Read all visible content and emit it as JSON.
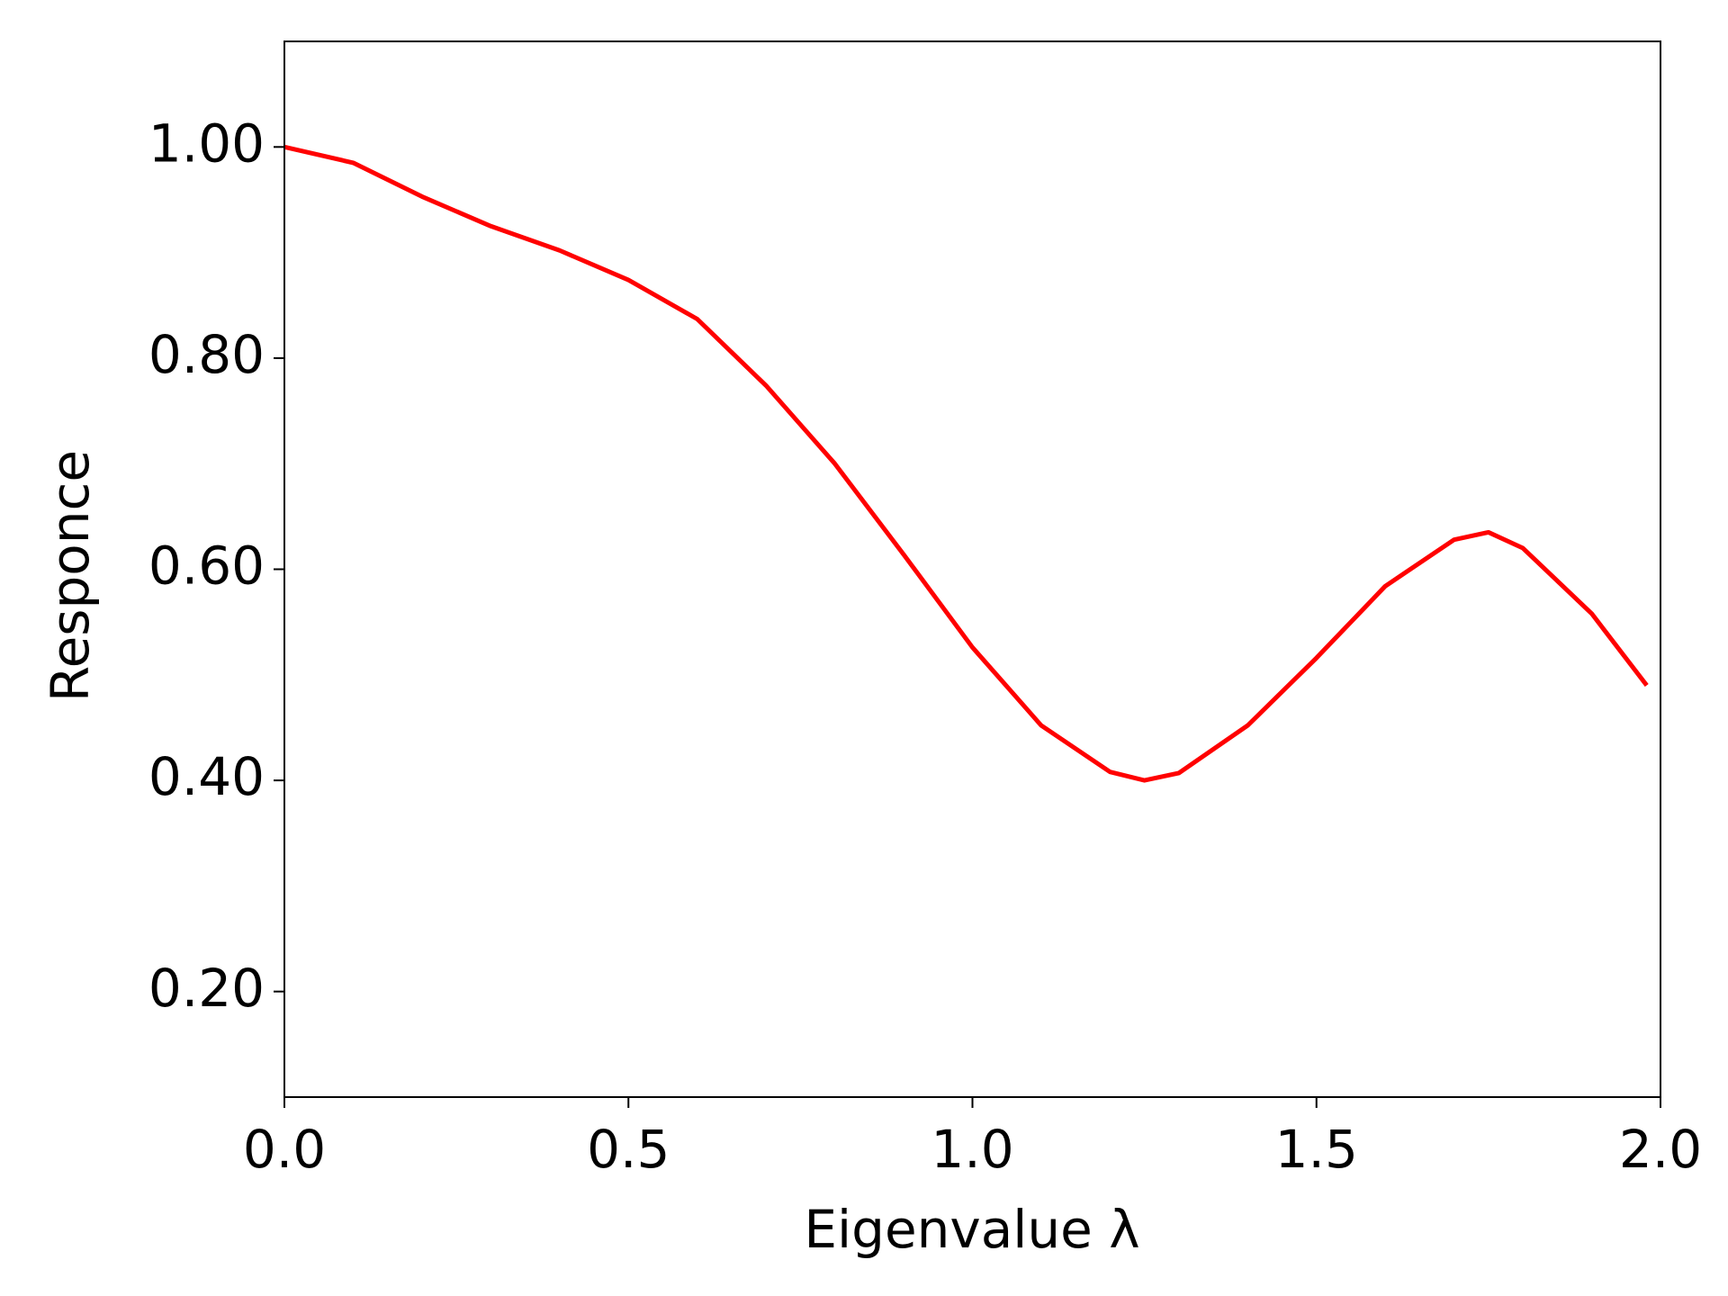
{
  "chart_data": {
    "type": "line",
    "xlabel": "Eigenvalue λ",
    "ylabel": "Responce",
    "x": [
      0,
      0.1,
      0.2,
      0.3,
      0.4,
      0.5,
      0.6,
      0.7,
      0.8,
      0.9,
      1.0,
      1.1,
      1.2,
      1.25,
      1.3,
      1.4,
      1.5,
      1.6,
      1.7,
      1.75,
      1.8,
      1.9,
      1.98
    ],
    "series": [
      {
        "color": "#ff0000",
        "values": [
          1.0,
          0.985,
          0.953,
          0.925,
          0.902,
          0.874,
          0.837,
          0.774,
          0.7,
          0.614,
          0.526,
          0.452,
          0.408,
          0.4,
          0.407,
          0.452,
          0.516,
          0.584,
          0.628,
          0.635,
          0.62,
          0.558,
          0.49
        ]
      }
    ],
    "xlim": [
      0,
      2
    ],
    "ylim": [
      0.1,
      1.1
    ],
    "xticks": [
      {
        "value": 0,
        "label": "0.0"
      },
      0.5,
      {
        "value": 1,
        "label": "1.0"
      },
      1.5,
      {
        "value": 2,
        "label": "2.0"
      }
    ],
    "yticks": [
      {
        "value": 0.2,
        "label": "0.20"
      },
      {
        "value": 0.4,
        "label": "0.40"
      },
      {
        "value": 0.6,
        "label": "0.60"
      },
      {
        "value": 0.8,
        "label": "0.80"
      },
      {
        "value": 1.0,
        "label": "1.00"
      }
    ],
    "grid": false
  }
}
